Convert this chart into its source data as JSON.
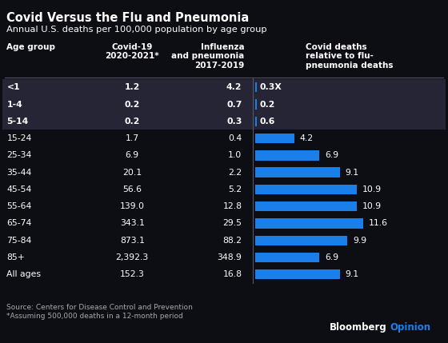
{
  "title": "Covid Versus the Flu and Pneumonia",
  "subtitle": "Annual U.S. deaths per 100,000 population by age group",
  "source": "Source: Centers for Disease Control and Prevention\n*Assuming 500,000 deaths in a 12-month period",
  "col_headers": {
    "age": "Age group",
    "covid": "Covid-19\n2020-2021*",
    "flu": "Influenza\nand pneumonia\n2017-2019",
    "ratio": "Covid deaths\nrelative to flu-\npneumonia deaths"
  },
  "rows": [
    {
      "age": "<1",
      "covid": "1.2",
      "flu": "4.2",
      "ratio": 0.3,
      "ratio_str": "0.3X",
      "highlighted": true
    },
    {
      "age": "1-4",
      "covid": "0.2",
      "flu": "0.7",
      "ratio": 0.2,
      "ratio_str": "0.2",
      "highlighted": true
    },
    {
      "age": "5-14",
      "covid": "0.2",
      "flu": "0.3",
      "ratio": 0.6,
      "ratio_str": "0.6",
      "highlighted": true
    },
    {
      "age": "15-24",
      "covid": "1.7",
      "flu": "0.4",
      "ratio": 4.2,
      "ratio_str": "4.2",
      "highlighted": false
    },
    {
      "age": "25-34",
      "covid": "6.9",
      "flu": "1.0",
      "ratio": 6.9,
      "ratio_str": "6.9",
      "highlighted": false
    },
    {
      "age": "35-44",
      "covid": "20.1",
      "flu": "2.2",
      "ratio": 9.1,
      "ratio_str": "9.1",
      "highlighted": false
    },
    {
      "age": "45-54",
      "covid": "56.6",
      "flu": "5.2",
      "ratio": 10.9,
      "ratio_str": "10.9",
      "highlighted": false
    },
    {
      "age": "55-64",
      "covid": "139.0",
      "flu": "12.8",
      "ratio": 10.9,
      "ratio_str": "10.9",
      "highlighted": false
    },
    {
      "age": "65-74",
      "covid": "343.1",
      "flu": "29.5",
      "ratio": 11.6,
      "ratio_str": "11.6",
      "highlighted": false
    },
    {
      "age": "75-84",
      "covid": "873.1",
      "flu": "88.2",
      "ratio": 9.9,
      "ratio_str": "9.9",
      "highlighted": false
    },
    {
      "age": "85+",
      "covid": "2,392.3",
      "flu": "348.9",
      "ratio": 6.9,
      "ratio_str": "6.9",
      "highlighted": false
    },
    {
      "age": "All ages",
      "covid": "152.3",
      "flu": "16.8",
      "ratio": 9.1,
      "ratio_str": "9.1",
      "highlighted": false
    }
  ],
  "bg_color": "#0d0d14",
  "highlight_bg": "#252535",
  "text_color": "#ffffff",
  "bar_color": "#1a7fe8",
  "bar_max": 13.0,
  "separator_color": "#555566",
  "source_color": "#aaaaaa",
  "bloomberg_color": "#ffffff",
  "opinion_color": "#1a7fe8"
}
